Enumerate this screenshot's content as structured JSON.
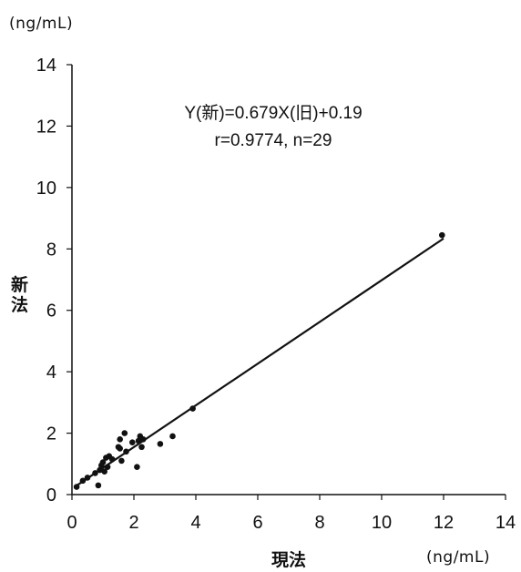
{
  "chart_data": {
    "type": "scatter",
    "title": "",
    "y_unit": "(ng/mL)",
    "x_unit": "(ng/mL)",
    "xlabel": "現法",
    "ylabel_line1": "新",
    "ylabel_line2": "法",
    "xlim": [
      0,
      14
    ],
    "ylim": [
      0,
      14
    ],
    "xticks": [
      0,
      2,
      4,
      6,
      8,
      10,
      12,
      14
    ],
    "yticks": [
      0,
      2,
      4,
      6,
      8,
      10,
      12,
      14
    ],
    "grid": false,
    "annotation": {
      "line1": "Y(新)=0.679X(旧)+0.19",
      "line2": "r=0.9774, n=29"
    },
    "regression": {
      "slope": 0.679,
      "intercept": 0.19,
      "x_range": [
        0.1,
        12
      ]
    },
    "points": [
      {
        "x": 0.15,
        "y": 0.25
      },
      {
        "x": 0.35,
        "y": 0.45
      },
      {
        "x": 0.5,
        "y": 0.55
      },
      {
        "x": 0.75,
        "y": 0.7
      },
      {
        "x": 0.85,
        "y": 0.3
      },
      {
        "x": 0.9,
        "y": 0.8
      },
      {
        "x": 0.95,
        "y": 0.95
      },
      {
        "x": 1.0,
        "y": 1.05
      },
      {
        "x": 1.05,
        "y": 0.75
      },
      {
        "x": 1.1,
        "y": 1.2
      },
      {
        "x": 1.15,
        "y": 0.9
      },
      {
        "x": 1.2,
        "y": 1.25
      },
      {
        "x": 1.3,
        "y": 1.15
      },
      {
        "x": 1.5,
        "y": 1.55
      },
      {
        "x": 1.55,
        "y": 1.8
      },
      {
        "x": 1.6,
        "y": 1.1
      },
      {
        "x": 1.7,
        "y": 2.0
      },
      {
        "x": 1.75,
        "y": 1.4
      },
      {
        "x": 1.95,
        "y": 1.7
      },
      {
        "x": 2.1,
        "y": 0.9
      },
      {
        "x": 2.15,
        "y": 1.75
      },
      {
        "x": 2.2,
        "y": 1.9
      },
      {
        "x": 2.25,
        "y": 1.55
      },
      {
        "x": 2.3,
        "y": 1.8
      },
      {
        "x": 2.85,
        "y": 1.65
      },
      {
        "x": 3.25,
        "y": 1.9
      },
      {
        "x": 3.9,
        "y": 2.8
      },
      {
        "x": 1.55,
        "y": 1.5
      },
      {
        "x": 11.95,
        "y": 8.45
      }
    ]
  }
}
